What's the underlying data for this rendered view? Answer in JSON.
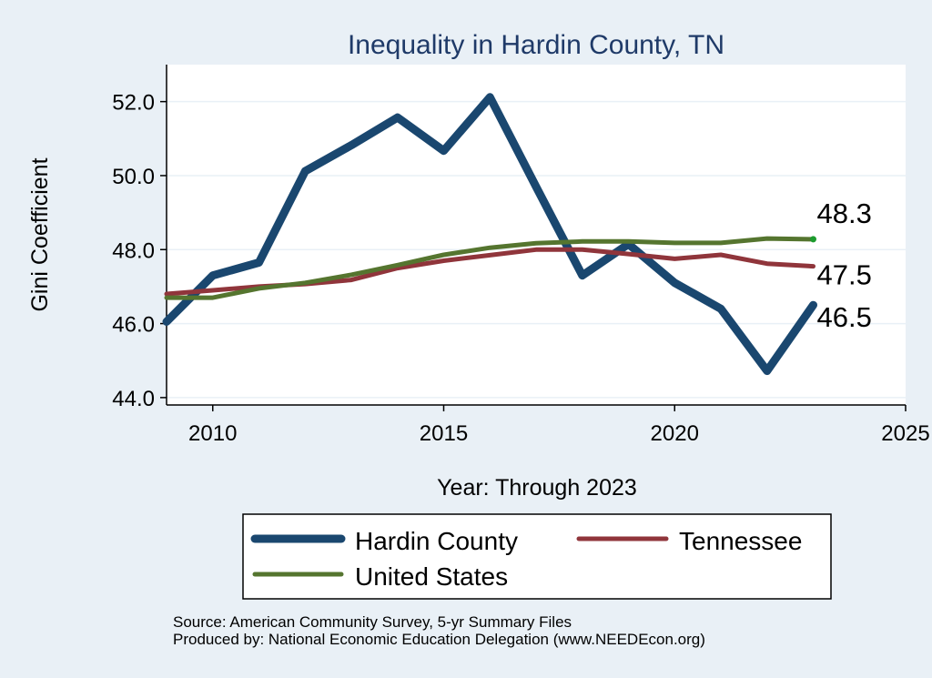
{
  "chart_data": {
    "type": "line",
    "title": "Inequality in Hardin County, TN",
    "xlabel": "Year: Through 2023",
    "ylabel": "Gini Coefficient",
    "xlim": [
      2009,
      2025
    ],
    "ylim": [
      43.8,
      53.0
    ],
    "x_ticks": [
      2010,
      2015,
      2020,
      2025
    ],
    "x_tick_labels": [
      "2010",
      "2015",
      "2020",
      "2025"
    ],
    "y_ticks": [
      44,
      46,
      48,
      50,
      52
    ],
    "y_tick_labels": [
      "44.0",
      "46.0",
      "48.0",
      "50.0",
      "52.0"
    ],
    "grid": true,
    "legend_position": "bottom",
    "x": [
      2009,
      2010,
      2011,
      2012,
      2013,
      2014,
      2015,
      2016,
      2017,
      2018,
      2019,
      2020,
      2021,
      2022,
      2023
    ],
    "series": [
      {
        "name": "Hardin County",
        "color": "#1a476f",
        "stroke": 9,
        "values": [
          46.05,
          47.3,
          47.65,
          50.12,
          50.82,
          51.57,
          50.67,
          52.12,
          49.7,
          47.3,
          48.15,
          47.1,
          46.4,
          44.72,
          46.5
        ],
        "end_label": "46.5"
      },
      {
        "name": "Tennessee",
        "color": "#90353b",
        "stroke": 5,
        "values": [
          46.8,
          46.9,
          47.0,
          47.07,
          47.18,
          47.5,
          47.7,
          47.85,
          48.0,
          48.0,
          47.88,
          47.75,
          47.86,
          47.62,
          47.55
        ],
        "end_label": "47.5"
      },
      {
        "name": "United States",
        "color": "#55752f",
        "stroke": 5,
        "values": [
          46.7,
          46.7,
          46.95,
          47.1,
          47.32,
          47.58,
          47.86,
          48.05,
          48.17,
          48.22,
          48.22,
          48.18,
          48.18,
          48.3,
          48.28
        ],
        "end_label": "48.3"
      }
    ],
    "end_marker_color": "#1c9b2e",
    "source_lines": [
      "Source: American Community Survey, 5-yr Summary Files",
      "Produced by: National Economic Education Delegation (www.NEEDEcon.org)"
    ]
  }
}
